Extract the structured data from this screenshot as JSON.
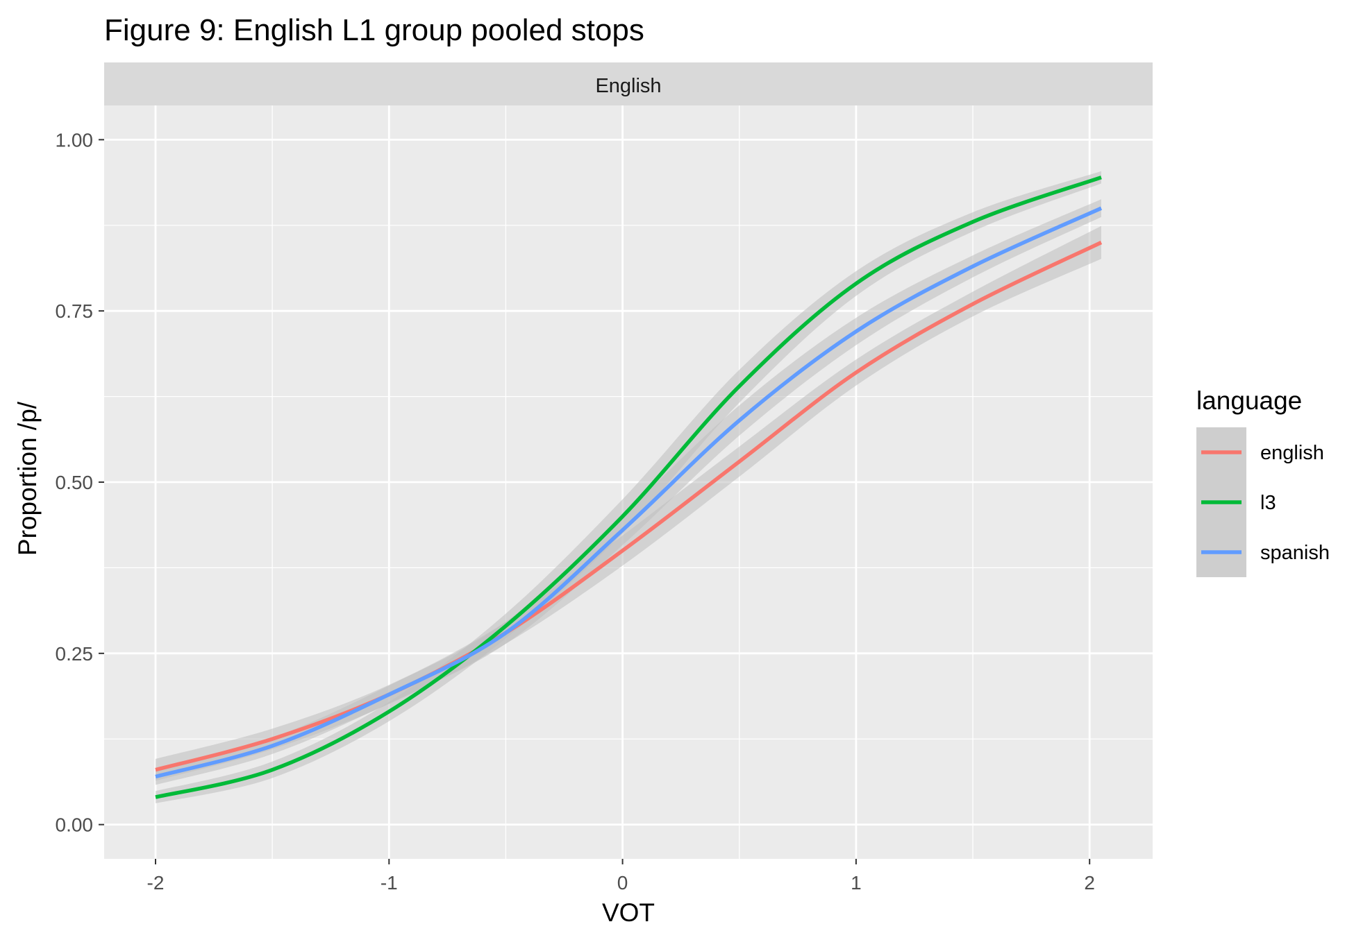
{
  "chart_data": {
    "type": "line",
    "title": "Figure 9: English L1 group pooled stops",
    "facet_label": "English",
    "xlabel": "VOT",
    "ylabel": "Proportion /p/",
    "xlim": [
      -2.22,
      2.27
    ],
    "ylim": [
      -0.05,
      1.05
    ],
    "x_ticks": [
      -2,
      -1,
      0,
      1,
      2
    ],
    "x_tick_labels": [
      "-2",
      "-1",
      "0",
      "1",
      "2"
    ],
    "y_ticks": [
      0,
      0.25,
      0.5,
      0.75,
      1
    ],
    "y_tick_labels": [
      "0.00",
      "0.25",
      "0.50",
      "0.75",
      "1.00"
    ],
    "grid": true,
    "confidence_band": true,
    "legend": {
      "title": "language",
      "position": "right"
    },
    "x": [
      -2.0,
      -1.5,
      -1.0,
      -0.5,
      0.0,
      0.5,
      1.0,
      1.5,
      2.05
    ],
    "series": [
      {
        "name": "english",
        "color": "#F8766D",
        "y": [
          0.08,
          0.125,
          0.19,
          0.28,
          0.4,
          0.53,
          0.66,
          0.76,
          0.85
        ],
        "ci_halfwidth": [
          0.016,
          0.015,
          0.014,
          0.016,
          0.022,
          0.022,
          0.019,
          0.018,
          0.024
        ]
      },
      {
        "name": "l3",
        "color": "#00BA38",
        "y": [
          0.04,
          0.08,
          0.165,
          0.29,
          0.45,
          0.64,
          0.79,
          0.88,
          0.945
        ],
        "ci_halfwidth": [
          0.009,
          0.012,
          0.014,
          0.018,
          0.025,
          0.024,
          0.018,
          0.014,
          0.009
        ]
      },
      {
        "name": "spanish",
        "color": "#619CFF",
        "y": [
          0.07,
          0.115,
          0.19,
          0.28,
          0.43,
          0.59,
          0.72,
          0.815,
          0.9
        ],
        "ci_halfwidth": [
          0.012,
          0.012,
          0.013,
          0.016,
          0.022,
          0.022,
          0.02,
          0.016,
          0.013
        ]
      }
    ]
  },
  "colors": {
    "panel_background": "#EBEBEB",
    "grid_major": "#FFFFFF",
    "strip_background": "#D9D9D9",
    "band_fill": "#BEBEBE",
    "tick_color": "#333333"
  }
}
